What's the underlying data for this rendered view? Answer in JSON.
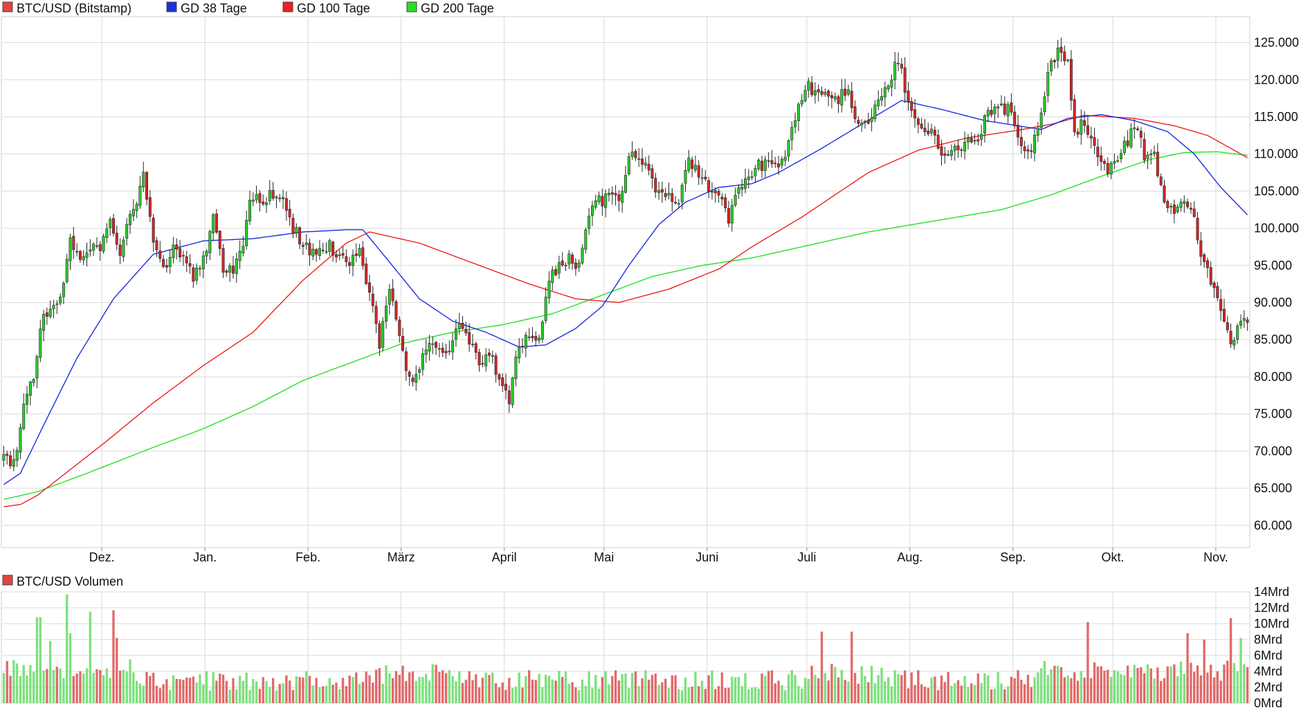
{
  "colors": {
    "price_series": "#e04545",
    "gd38": "#1a2fe0",
    "gd100": "#ee2020",
    "gd200": "#26e026",
    "candle_up": "#27d027",
    "candle_down": "#d62626",
    "grid": "#d9d9d9",
    "vol_up": "#7ee07e",
    "vol_down": "#e06a6a"
  },
  "chart_data": [
    {
      "type": "candlestick",
      "legend": {
        "price": "BTC/USD (Bitstamp)",
        "gd38": "GD 38 Tage",
        "gd100": "GD 100 Tage",
        "gd200": "GD 200 Tage"
      },
      "legend_placement": "top-left",
      "y_axis_side": "right",
      "ylim": [
        57000,
        128500
      ],
      "y_ticks": [
        60000,
        65000,
        70000,
        75000,
        80000,
        85000,
        90000,
        95000,
        100000,
        105000,
        110000,
        115000,
        120000,
        125000
      ],
      "y_tick_labels": [
        "60.000",
        "65.000",
        "70.000",
        "75.000",
        "80.000",
        "85.000",
        "90.000",
        "95.000",
        "100.000",
        "105.000",
        "110.000",
        "115.000",
        "120.000",
        "125.000"
      ],
      "x_ticks": [
        "Dez.",
        "Jan.",
        "Feb.",
        "März",
        "April",
        "Mai",
        "Juni",
        "Juli",
        "Aug.",
        "Sep.",
        "Okt.",
        "Nov."
      ],
      "grid": true,
      "close_anchors": [
        {
          "d": 0,
          "v": 69500
        },
        {
          "d": 2,
          "v": 67800
        },
        {
          "d": 4,
          "v": 69800
        },
        {
          "d": 6,
          "v": 76800
        },
        {
          "d": 9,
          "v": 80200
        },
        {
          "d": 11,
          "v": 86500
        },
        {
          "d": 13,
          "v": 88800
        },
        {
          "d": 17,
          "v": 90000
        },
        {
          "d": 20,
          "v": 99000
        },
        {
          "d": 23,
          "v": 95500
        },
        {
          "d": 26,
          "v": 97000
        },
        {
          "d": 29,
          "v": 97500
        },
        {
          "d": 32,
          "v": 101500
        },
        {
          "d": 35,
          "v": 97000
        },
        {
          "d": 38,
          "v": 101000
        },
        {
          "d": 42,
          "v": 107000
        },
        {
          "d": 45,
          "v": 98000
        },
        {
          "d": 48,
          "v": 94500
        },
        {
          "d": 51,
          "v": 97000
        },
        {
          "d": 54,
          "v": 95500
        },
        {
          "d": 57,
          "v": 93500
        },
        {
          "d": 61,
          "v": 97500
        },
        {
          "d": 63,
          "v": 102000
        },
        {
          "d": 66,
          "v": 94200
        },
        {
          "d": 69,
          "v": 94800
        },
        {
          "d": 72,
          "v": 97500
        },
        {
          "d": 74,
          "v": 104500
        },
        {
          "d": 77,
          "v": 103500
        },
        {
          "d": 80,
          "v": 104500
        },
        {
          "d": 83,
          "v": 104500
        },
        {
          "d": 86,
          "v": 101000
        },
        {
          "d": 89,
          "v": 98500
        },
        {
          "d": 92,
          "v": 96500
        },
        {
          "d": 95,
          "v": 97000
        },
        {
          "d": 98,
          "v": 97500
        },
        {
          "d": 101,
          "v": 96500
        },
        {
          "d": 104,
          "v": 95500
        },
        {
          "d": 107,
          "v": 97000
        },
        {
          "d": 110,
          "v": 91500
        },
        {
          "d": 113,
          "v": 84500
        },
        {
          "d": 116,
          "v": 91500
        },
        {
          "d": 119,
          "v": 85500
        },
        {
          "d": 122,
          "v": 79500
        },
        {
          "d": 125,
          "v": 81500
        },
        {
          "d": 128,
          "v": 84500
        },
        {
          "d": 131,
          "v": 83500
        },
        {
          "d": 134,
          "v": 84000
        },
        {
          "d": 137,
          "v": 86500
        },
        {
          "d": 140,
          "v": 84500
        },
        {
          "d": 143,
          "v": 82000
        },
        {
          "d": 146,
          "v": 83500
        },
        {
          "d": 149,
          "v": 79000
        },
        {
          "d": 152,
          "v": 77000
        },
        {
          "d": 155,
          "v": 84500
        },
        {
          "d": 158,
          "v": 85000
        },
        {
          "d": 161,
          "v": 84800
        },
        {
          "d": 164,
          "v": 93500
        },
        {
          "d": 167,
          "v": 94800
        },
        {
          "d": 170,
          "v": 96500
        },
        {
          "d": 173,
          "v": 94500
        },
        {
          "d": 176,
          "v": 102500
        },
        {
          "d": 179,
          "v": 103500
        },
        {
          "d": 182,
          "v": 104000
        },
        {
          "d": 185,
          "v": 103500
        },
        {
          "d": 188,
          "v": 109500
        },
        {
          "d": 191,
          "v": 109500
        },
        {
          "d": 194,
          "v": 107500
        },
        {
          "d": 197,
          "v": 104500
        },
        {
          "d": 200,
          "v": 104500
        },
        {
          "d": 203,
          "v": 103500
        },
        {
          "d": 206,
          "v": 109500
        },
        {
          "d": 209,
          "v": 107000
        },
        {
          "d": 212,
          "v": 105500
        },
        {
          "d": 215,
          "v": 104500
        },
        {
          "d": 218,
          "v": 101000
        },
        {
          "d": 221,
          "v": 105500
        },
        {
          "d": 224,
          "v": 107500
        },
        {
          "d": 227,
          "v": 108500
        },
        {
          "d": 230,
          "v": 108500
        },
        {
          "d": 233,
          "v": 108000
        },
        {
          "d": 236,
          "v": 111000
        },
        {
          "d": 239,
          "v": 117500
        },
        {
          "d": 242,
          "v": 119000
        },
        {
          "d": 245,
          "v": 118500
        },
        {
          "d": 248,
          "v": 118000
        },
        {
          "d": 251,
          "v": 117500
        },
        {
          "d": 254,
          "v": 118500
        },
        {
          "d": 257,
          "v": 113500
        },
        {
          "d": 260,
          "v": 114500
        },
        {
          "d": 263,
          "v": 116500
        },
        {
          "d": 266,
          "v": 119500
        },
        {
          "d": 269,
          "v": 122500
        },
        {
          "d": 272,
          "v": 117500
        },
        {
          "d": 275,
          "v": 114500
        },
        {
          "d": 278,
          "v": 113500
        },
        {
          "d": 281,
          "v": 111000
        },
        {
          "d": 284,
          "v": 110000
        },
        {
          "d": 287,
          "v": 111000
        },
        {
          "d": 290,
          "v": 111500
        },
        {
          "d": 293,
          "v": 112000
        },
        {
          "d": 296,
          "v": 116000
        },
        {
          "d": 299,
          "v": 116500
        },
        {
          "d": 302,
          "v": 116000
        },
        {
          "d": 305,
          "v": 113000
        },
        {
          "d": 308,
          "v": 109500
        },
        {
          "d": 311,
          "v": 113500
        },
        {
          "d": 314,
          "v": 120500
        },
        {
          "d": 317,
          "v": 124000
        },
        {
          "d": 320,
          "v": 122500
        },
        {
          "d": 322,
          "v": 112500
        },
        {
          "d": 325,
          "v": 114500
        },
        {
          "d": 328,
          "v": 111500
        },
        {
          "d": 331,
          "v": 108000
        },
        {
          "d": 334,
          "v": 108500
        },
        {
          "d": 337,
          "v": 111000
        },
        {
          "d": 340,
          "v": 114000
        },
        {
          "d": 343,
          "v": 110000
        },
        {
          "d": 346,
          "v": 110000
        },
        {
          "d": 349,
          "v": 103500
        },
        {
          "d": 352,
          "v": 102000
        },
        {
          "d": 355,
          "v": 104500
        },
        {
          "d": 358,
          "v": 101000
        },
        {
          "d": 361,
          "v": 95000
        },
        {
          "d": 364,
          "v": 91500
        },
        {
          "d": 367,
          "v": 87500
        },
        {
          "d": 369,
          "v": 84000
        },
        {
          "d": 372,
          "v": 87500
        },
        {
          "d": 374,
          "v": 88000
        }
      ],
      "gd38_anchors": [
        {
          "d": 0,
          "v": 65500
        },
        {
          "d": 5,
          "v": 67000
        },
        {
          "d": 12,
          "v": 73500
        },
        {
          "d": 22,
          "v": 82500
        },
        {
          "d": 33,
          "v": 90500
        },
        {
          "d": 45,
          "v": 96500
        },
        {
          "d": 60,
          "v": 98300
        },
        {
          "d": 75,
          "v": 98600
        },
        {
          "d": 90,
          "v": 99500
        },
        {
          "d": 103,
          "v": 99800
        },
        {
          "d": 108,
          "v": 99800
        },
        {
          "d": 115,
          "v": 96000
        },
        {
          "d": 125,
          "v": 90500
        },
        {
          "d": 135,
          "v": 87500
        },
        {
          "d": 145,
          "v": 86000
        },
        {
          "d": 155,
          "v": 84000
        },
        {
          "d": 163,
          "v": 84300
        },
        {
          "d": 172,
          "v": 86500
        },
        {
          "d": 180,
          "v": 89500
        },
        {
          "d": 188,
          "v": 95000
        },
        {
          "d": 197,
          "v": 100500
        },
        {
          "d": 205,
          "v": 103500
        },
        {
          "d": 215,
          "v": 105500
        },
        {
          "d": 225,
          "v": 106000
        },
        {
          "d": 233,
          "v": 107500
        },
        {
          "d": 245,
          "v": 110500
        },
        {
          "d": 258,
          "v": 114000
        },
        {
          "d": 270,
          "v": 117200
        },
        {
          "d": 282,
          "v": 116000
        },
        {
          "d": 295,
          "v": 114500
        },
        {
          "d": 305,
          "v": 113800
        },
        {
          "d": 312,
          "v": 113300
        },
        {
          "d": 320,
          "v": 114800
        },
        {
          "d": 330,
          "v": 115300
        },
        {
          "d": 340,
          "v": 114500
        },
        {
          "d": 350,
          "v": 113000
        },
        {
          "d": 358,
          "v": 110000
        },
        {
          "d": 366,
          "v": 105500
        },
        {
          "d": 374,
          "v": 101800
        }
      ],
      "gd100_anchors": [
        {
          "d": 0,
          "v": 62500
        },
        {
          "d": 5,
          "v": 62800
        },
        {
          "d": 10,
          "v": 64000
        },
        {
          "d": 20,
          "v": 67500
        },
        {
          "d": 30,
          "v": 71000
        },
        {
          "d": 45,
          "v": 76500
        },
        {
          "d": 60,
          "v": 81500
        },
        {
          "d": 75,
          "v": 86000
        },
        {
          "d": 90,
          "v": 93000
        },
        {
          "d": 103,
          "v": 98000
        },
        {
          "d": 110,
          "v": 99500
        },
        {
          "d": 125,
          "v": 98000
        },
        {
          "d": 140,
          "v": 95500
        },
        {
          "d": 158,
          "v": 92500
        },
        {
          "d": 172,
          "v": 90500
        },
        {
          "d": 185,
          "v": 90000
        },
        {
          "d": 200,
          "v": 91800
        },
        {
          "d": 215,
          "v": 94500
        },
        {
          "d": 225,
          "v": 97500
        },
        {
          "d": 240,
          "v": 101500
        },
        {
          "d": 260,
          "v": 107500
        },
        {
          "d": 275,
          "v": 110500
        },
        {
          "d": 290,
          "v": 112200
        },
        {
          "d": 305,
          "v": 113200
        },
        {
          "d": 315,
          "v": 114000
        },
        {
          "d": 325,
          "v": 115200
        },
        {
          "d": 340,
          "v": 114800
        },
        {
          "d": 352,
          "v": 113800
        },
        {
          "d": 362,
          "v": 112500
        },
        {
          "d": 374,
          "v": 109500
        }
      ],
      "gd200_anchors": [
        {
          "d": 0,
          "v": 63500
        },
        {
          "d": 10,
          "v": 64500
        },
        {
          "d": 25,
          "v": 67000
        },
        {
          "d": 45,
          "v": 70500
        },
        {
          "d": 60,
          "v": 73000
        },
        {
          "d": 75,
          "v": 76000
        },
        {
          "d": 90,
          "v": 79500
        },
        {
          "d": 105,
          "v": 82000
        },
        {
          "d": 120,
          "v": 84500
        },
        {
          "d": 135,
          "v": 86000
        },
        {
          "d": 150,
          "v": 87000
        },
        {
          "d": 165,
          "v": 88500
        },
        {
          "d": 180,
          "v": 91000
        },
        {
          "d": 195,
          "v": 93500
        },
        {
          "d": 210,
          "v": 95000
        },
        {
          "d": 225,
          "v": 96000
        },
        {
          "d": 240,
          "v": 97500
        },
        {
          "d": 260,
          "v": 99500
        },
        {
          "d": 280,
          "v": 101000
        },
        {
          "d": 300,
          "v": 102500
        },
        {
          "d": 315,
          "v": 104500
        },
        {
          "d": 330,
          "v": 107000
        },
        {
          "d": 345,
          "v": 109300
        },
        {
          "d": 355,
          "v": 110200
        },
        {
          "d": 365,
          "v": 110300
        },
        {
          "d": 374,
          "v": 109800
        }
      ]
    },
    {
      "type": "bar",
      "legend": {
        "volume": "BTC/USD Volumen"
      },
      "y_axis_side": "right",
      "unit": "Mrd",
      "ylim": [
        0,
        14
      ],
      "y_ticks": [
        0,
        2,
        4,
        6,
        8,
        10,
        12,
        14
      ],
      "y_tick_labels": [
        "0Mrd",
        "2Mrd",
        "4Mrd",
        "6Mrd",
        "8Mrd",
        "10Mrd",
        "12Mrd",
        "14Mrd"
      ],
      "grid": true,
      "spikes": [
        {
          "d": 10,
          "v": 10.8
        },
        {
          "d": 11,
          "v": 10.8
        },
        {
          "d": 19,
          "v": 13.7
        },
        {
          "d": 20,
          "v": 8.8
        },
        {
          "d": 26,
          "v": 11.5
        },
        {
          "d": 33,
          "v": 11.7
        },
        {
          "d": 34,
          "v": 8.2
        },
        {
          "d": 14,
          "v": 7.8
        },
        {
          "d": 246,
          "v": 9.0
        },
        {
          "d": 255,
          "v": 9.0
        },
        {
          "d": 326,
          "v": 10.2
        },
        {
          "d": 369,
          "v": 10.7
        },
        {
          "d": 372,
          "v": 8.2
        },
        {
          "d": 356,
          "v": 8.8
        },
        {
          "d": 361,
          "v": 8.0
        }
      ]
    }
  ]
}
